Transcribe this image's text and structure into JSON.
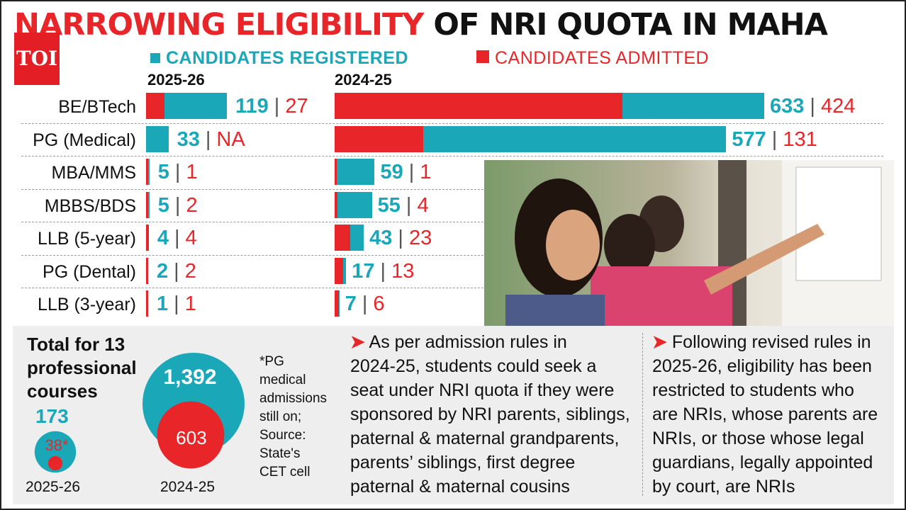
{
  "header": {
    "title_red": "NARROWING ELIGIBILITY",
    "title_black": "OF NRI QUOTA IN MAHA",
    "logo_text": "TOI"
  },
  "colors": {
    "registered": "#1aa7b8",
    "admitted": "#e8262a",
    "panel": "#eeeeee"
  },
  "chart_data": [
    {
      "type": "bar",
      "title": "2025-26",
      "categories": [
        "BE/BTech",
        "PG (Medical)",
        "MBA/MMS",
        "MBBS/BDS",
        "LLB (5-year)",
        "PG (Dental)",
        "LLB (3-year)"
      ],
      "series": [
        {
          "name": "CANDIDATES REGISTERED",
          "values": [
            119,
            33,
            5,
            5,
            4,
            2,
            1
          ]
        },
        {
          "name": "CANDIDATES ADMITTED",
          "values": [
            27,
            null,
            1,
            2,
            4,
            2,
            1
          ]
        }
      ],
      "value_labels": [
        {
          "reg": "119",
          "adm": "27"
        },
        {
          "reg": "33",
          "adm": "NA"
        },
        {
          "reg": "5",
          "adm": "1"
        },
        {
          "reg": "5",
          "adm": "2"
        },
        {
          "reg": "4",
          "adm": "4"
        },
        {
          "reg": "2",
          "adm": "2"
        },
        {
          "reg": "1",
          "adm": "1"
        }
      ]
    },
    {
      "type": "bar",
      "title": "2024-25",
      "categories": [
        "BE/BTech",
        "PG (Medical)",
        "MBA/MMS",
        "MBBS/BDS",
        "LLB (5-year)",
        "PG (Dental)",
        "LLB (3-year)"
      ],
      "series": [
        {
          "name": "CANDIDATES REGISTERED",
          "values": [
            633,
            577,
            59,
            55,
            43,
            17,
            7
          ]
        },
        {
          "name": "CANDIDATES ADMITTED",
          "values": [
            424,
            131,
            1,
            4,
            23,
            13,
            6
          ]
        }
      ],
      "value_labels": [
        {
          "reg": "633",
          "adm": "424"
        },
        {
          "reg": "577",
          "adm": "131"
        },
        {
          "reg": "59",
          "adm": "1"
        },
        {
          "reg": "55",
          "adm": "4"
        },
        {
          "reg": "43",
          "adm": "23"
        },
        {
          "reg": "17",
          "adm": "13"
        },
        {
          "reg": "7",
          "adm": "6"
        }
      ]
    }
  ],
  "legend": {
    "registered": "CANDIDATES REGISTERED",
    "admitted": "CANDIDATES ADMITTED"
  },
  "totals": {
    "heading_lines": [
      "Total for 13",
      "professional",
      "courses"
    ],
    "y2025_registered": "173",
    "y2025_admitted": "38*",
    "y2025_label": "2025-26",
    "y2024_registered": "1,392",
    "y2024_admitted": "603",
    "y2024_label": "2024-25",
    "reg_2025": 173,
    "adm_2025": 38,
    "reg_2024": 1392,
    "adm_2024": 603
  },
  "footnote": [
    "*PG",
    "medical",
    "admissions",
    "still on;",
    "Source:",
    "State's",
    "CET cell"
  ],
  "paragraph_left": {
    "lines": [
      "As per admission rules in",
      "2024-25, students could seek a",
      "seat under NRI quota if they were",
      "sponsored by NRI parents, siblings,",
      "paternal & maternal grandparents,",
      "parents’ siblings, first degree",
      "paternal & maternal cousins"
    ]
  },
  "paragraph_right": {
    "lines": [
      "Following revised rules in",
      "2025-26, eligibility has been",
      "restricted to students who",
      "are NRIs, whose parents are",
      "NRIs, or those whose legal",
      "guardians, legally appointed",
      "by court, are NRIs"
    ]
  }
}
